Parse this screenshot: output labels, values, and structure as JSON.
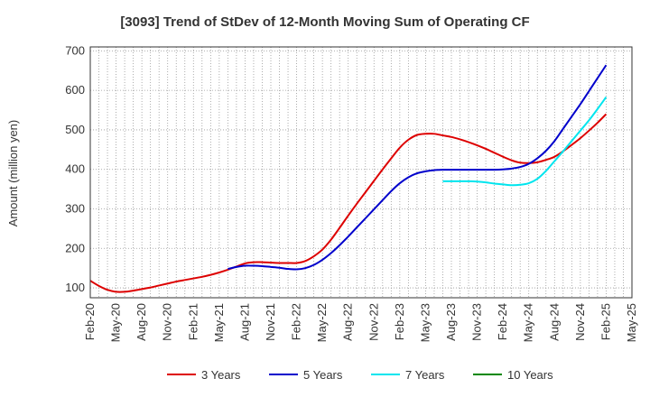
{
  "chart_data": {
    "type": "line",
    "title": "[3093]  Trend of StDev of 12-Month Moving Sum of Operating CF",
    "xlabel": "",
    "ylabel": "Amount (million yen)",
    "ylim": [
      75,
      710
    ],
    "yticks": [
      100,
      200,
      300,
      400,
      500,
      600,
      700
    ],
    "x_ticks": [
      "Feb-20",
      "May-20",
      "Aug-20",
      "Nov-20",
      "Feb-21",
      "May-21",
      "Aug-21",
      "Nov-21",
      "Feb-22",
      "May-22",
      "Aug-22",
      "Nov-22",
      "Feb-23",
      "May-23",
      "Aug-23",
      "Nov-23",
      "Feb-24",
      "May-24",
      "Aug-24",
      "Nov-24",
      "Feb-25",
      "May-25"
    ],
    "grid": true,
    "legend_position": "bottom",
    "series": [
      {
        "name": "3 Years",
        "color": "#dd0000",
        "x": [
          "Feb-20",
          "Mar-20",
          "Apr-20",
          "May-20",
          "Jun-20",
          "Jul-20",
          "Aug-20",
          "Sep-20",
          "Oct-20",
          "Nov-20",
          "Dec-20",
          "Jan-21",
          "Feb-21",
          "Mar-21",
          "Apr-21",
          "May-21",
          "Jun-21",
          "Jul-21",
          "Aug-21",
          "Sep-21",
          "Oct-21",
          "Nov-21",
          "Dec-21",
          "Jan-22",
          "Feb-22",
          "Mar-22",
          "Apr-22",
          "May-22",
          "Jun-22",
          "Jul-22",
          "Aug-22",
          "Sep-22",
          "Oct-22",
          "Nov-22",
          "Dec-22",
          "Jan-23",
          "Feb-23",
          "Mar-23",
          "Apr-23",
          "May-23",
          "Jun-23",
          "Jul-23",
          "Aug-23",
          "Sep-23",
          "Oct-23",
          "Nov-23",
          "Dec-23",
          "Jan-24",
          "Feb-24",
          "Mar-24",
          "Apr-24",
          "May-24",
          "Jun-24",
          "Jul-24",
          "Aug-24",
          "Sep-24",
          "Oct-24",
          "Nov-24",
          "Dec-24",
          "Jan-25",
          "Feb-25"
        ],
        "values": [
          118,
          105,
          95,
          90,
          90,
          93,
          97,
          101,
          106,
          111,
          116,
          120,
          124,
          128,
          133,
          139,
          146,
          154,
          162,
          165,
          165,
          164,
          163,
          163,
          163,
          168,
          180,
          197,
          222,
          252,
          283,
          313,
          342,
          371,
          400,
          428,
          455,
          475,
          487,
          490,
          490,
          486,
          482,
          476,
          469,
          461,
          452,
          442,
          432,
          423,
          417,
          416,
          418,
          424,
          432,
          446,
          462,
          479,
          498,
          518,
          540
        ]
      },
      {
        "name": "5 Years",
        "color": "#0000cc",
        "x": [
          "Jun-21",
          "Jul-21",
          "Aug-21",
          "Sep-21",
          "Oct-21",
          "Nov-21",
          "Dec-21",
          "Jan-22",
          "Feb-22",
          "Mar-22",
          "Apr-22",
          "May-22",
          "Jun-22",
          "Jul-22",
          "Aug-22",
          "Sep-22",
          "Oct-22",
          "Nov-22",
          "Dec-22",
          "Jan-23",
          "Feb-23",
          "Mar-23",
          "Apr-23",
          "May-23",
          "Jun-23",
          "Jul-23",
          "Aug-23",
          "Sep-23",
          "Oct-23",
          "Nov-23",
          "Dec-23",
          "Jan-24",
          "Feb-24",
          "Mar-24",
          "Apr-24",
          "May-24",
          "Jun-24",
          "Jul-24",
          "Aug-24",
          "Sep-24",
          "Oct-24",
          "Nov-24",
          "Dec-24",
          "Jan-25",
          "Feb-25"
        ],
        "values": [
          148,
          153,
          156,
          156,
          155,
          153,
          151,
          148,
          147,
          150,
          158,
          171,
          188,
          208,
          230,
          253,
          276,
          299,
          322,
          345,
          365,
          380,
          390,
          395,
          398,
          399,
          399,
          399,
          399,
          399,
          399,
          399,
          400,
          402,
          406,
          414,
          428,
          447,
          472,
          503,
          534,
          565,
          598,
          631,
          664
        ]
      },
      {
        "name": "7 Years",
        "color": "#00e5ee",
        "x": [
          "Jul-23",
          "Aug-23",
          "Sep-23",
          "Oct-23",
          "Nov-23",
          "Dec-23",
          "Jan-24",
          "Feb-24",
          "Mar-24",
          "Apr-24",
          "May-24",
          "Jun-24",
          "Jul-24",
          "Aug-24",
          "Sep-24",
          "Oct-24",
          "Nov-24",
          "Dec-24",
          "Jan-25",
          "Feb-25"
        ],
        "values": [
          370,
          370,
          370,
          370,
          369,
          367,
          364,
          362,
          360,
          361,
          365,
          376,
          396,
          421,
          446,
          472,
          498,
          524,
          553,
          583
        ]
      },
      {
        "name": "10 Years",
        "color": "#008800",
        "x": [],
        "values": []
      }
    ]
  }
}
